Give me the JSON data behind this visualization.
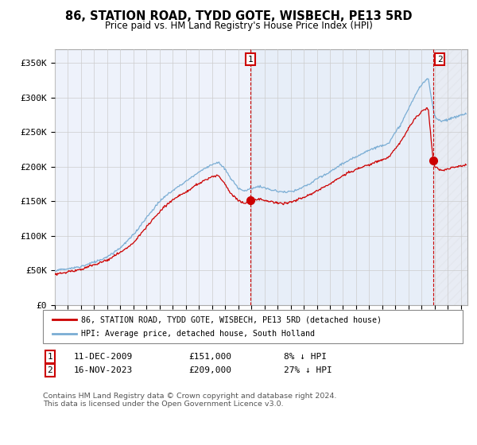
{
  "title": "86, STATION ROAD, TYDD GOTE, WISBECH, PE13 5RD",
  "subtitle": "Price paid vs. HM Land Registry's House Price Index (HPI)",
  "ylim": [
    0,
    370000
  ],
  "xlim_start": 1995.0,
  "xlim_end": 2026.5,
  "hpi_color": "#7aadd4",
  "price_color": "#cc0000",
  "sale1_date": 2009.94,
  "sale1_price": 151000,
  "sale2_date": 2023.88,
  "sale2_price": 209000,
  "legend_line1": "86, STATION ROAD, TYDD GOTE, WISBECH, PE13 5RD (detached house)",
  "legend_line2": "HPI: Average price, detached house, South Holland",
  "footnote": "Contains HM Land Registry data © Crown copyright and database right 2024.\nThis data is licensed under the Open Government Licence v3.0.",
  "plot_bg_color": "#eef2fb",
  "grid_color": "#cccccc",
  "highlight_fill": "#dce8f5",
  "hatch_fill": "#f0f0f0"
}
